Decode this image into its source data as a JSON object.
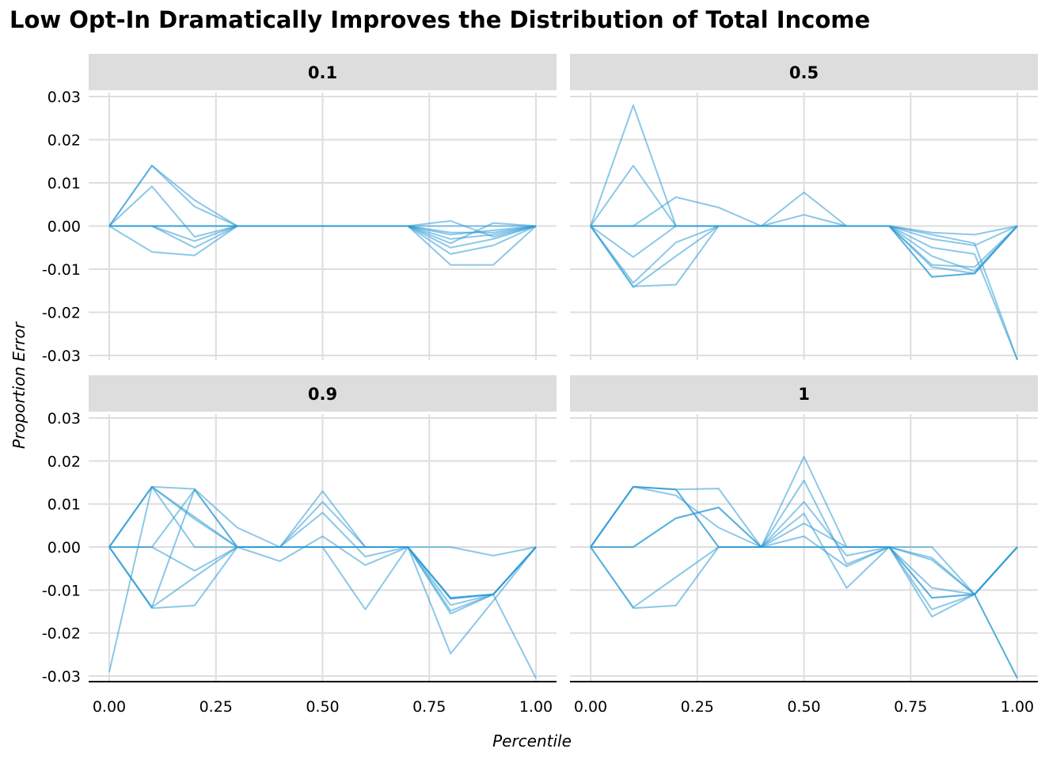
{
  "chart_data": {
    "type": "line",
    "title": "Low Opt-In Dramatically Improves the Distribution of Total Income",
    "xlabel": "Percentile",
    "ylabel": "Proportion Error",
    "xlim": [
      0,
      1
    ],
    "ylim": [
      -0.03,
      0.03
    ],
    "x_ticks": [
      0,
      0.25,
      0.5,
      0.75,
      1
    ],
    "x_tick_labels": [
      "0.00",
      "0.25",
      "0.50",
      "0.75",
      "1.00"
    ],
    "y_ticks": [
      0.03,
      0.02,
      0.01,
      0,
      -0.01,
      -0.02,
      -0.03
    ],
    "y_tick_labels": [
      "0.03",
      "0.02",
      "0.01",
      "0.00",
      "-0.01",
      "-0.02",
      "-0.03"
    ],
    "grid": true,
    "line_color": "#2E9BD5",
    "strip_color": "#DDDDDD",
    "x": [
      0,
      0.1,
      0.2,
      0.3,
      0.4,
      0.5,
      0.6,
      0.7,
      0.8,
      0.9,
      1
    ],
    "panels": [
      {
        "label": "0.1",
        "series": [
          {
            "values": [
              0,
              0.014,
              0.006,
              0,
              0,
              0,
              0,
              0,
              -0.002,
              -0.001,
              0
            ]
          },
          {
            "values": [
              0,
              0.014,
              0.0045,
              0,
              0,
              0,
              0,
              0,
              -0.003,
              -0.002,
              0
            ]
          },
          {
            "values": [
              0,
              0.0092,
              -0.0025,
              0,
              0,
              0,
              0,
              0,
              -0.009,
              -0.009,
              0
            ]
          },
          {
            "values": [
              0,
              -0.006,
              -0.0068,
              0,
              0,
              0,
              0,
              0,
              -0.0065,
              -0.0045,
              0
            ]
          },
          {
            "values": [
              0,
              0,
              -0.0035,
              0,
              0,
              0,
              0,
              0,
              0.0012,
              -0.0025,
              0
            ]
          },
          {
            "values": [
              0,
              0,
              -0.005,
              0,
              0,
              0,
              0,
              0,
              -0.004,
              0.0007,
              0
            ]
          },
          {
            "values": [
              0,
              0,
              0,
              0,
              0,
              0,
              0,
              0,
              -0.0015,
              -0.0015,
              0
            ]
          },
          {
            "values": [
              0,
              0,
              0,
              0,
              0,
              0,
              0,
              0,
              -0.005,
              -0.003,
              0
            ]
          },
          {
            "values": [
              0,
              0,
              0,
              0,
              0,
              0,
              0,
              0,
              0,
              0,
              0
            ]
          }
        ]
      },
      {
        "label": "0.5",
        "series": [
          {
            "values": [
              0,
              0.028,
              0,
              0,
              0,
              0,
              0,
              0,
              -0.0015,
              -0.002,
              0
            ]
          },
          {
            "values": [
              0,
              0.014,
              0,
              0,
              0,
              0,
              0,
              0,
              -0.002,
              -0.004,
              -0.031
            ]
          },
          {
            "values": [
              0,
              0,
              0.0067,
              0.0043,
              0,
              0.0026,
              0,
              0,
              -0.005,
              -0.0065,
              -0.031
            ]
          },
          {
            "values": [
              0,
              -0.0072,
              0,
              0,
              0,
              0.0078,
              0,
              0,
              -0.007,
              -0.0105,
              0
            ]
          },
          {
            "values": [
              0,
              -0.0132,
              -0.0038,
              0,
              0,
              0,
              0,
              0,
              -0.0095,
              -0.011,
              0
            ]
          },
          {
            "values": [
              0,
              -0.0142,
              -0.007,
              0,
              0,
              0,
              0,
              0,
              -0.0118,
              -0.011,
              0
            ]
          },
          {
            "values": [
              0,
              -0.014,
              -0.0136,
              0,
              0,
              0,
              0,
              0,
              -0.009,
              -0.0095,
              0
            ]
          },
          {
            "values": [
              0,
              0,
              0,
              0,
              0,
              0,
              0,
              0,
              -0.003,
              -0.0045,
              0
            ]
          },
          {
            "values": [
              0,
              0,
              0,
              0,
              0,
              0,
              0,
              0,
              -0.0118,
              -0.011,
              0
            ]
          }
        ]
      },
      {
        "label": "0.9",
        "series": [
          {
            "values": [
              -0.029,
              0.014,
              0.0135,
              0.0045,
              0,
              0.013,
              0,
              0,
              -0.0148,
              -0.011,
              0
            ]
          },
          {
            "values": [
              0,
              0.014,
              0.007,
              0,
              0,
              0.0105,
              0,
              0,
              -0.0118,
              -0.011,
              0
            ]
          },
          {
            "values": [
              0,
              0.014,
              0,
              0,
              0,
              0.008,
              -0.0022,
              0,
              -0.0155,
              -0.011,
              0
            ]
          },
          {
            "values": [
              0,
              0,
              0.0133,
              0,
              -0.0033,
              0.0025,
              -0.0042,
              0,
              -0.0248,
              -0.0125,
              0
            ]
          },
          {
            "values": [
              0,
              0,
              -0.0055,
              0,
              0,
              0,
              -0.0145,
              0,
              0,
              -0.002,
              0
            ]
          },
          {
            "values": [
              0,
              -0.014,
              0.0134,
              0,
              0,
              0,
              0,
              0,
              -0.0118,
              -0.011,
              -0.0305
            ]
          },
          {
            "values": [
              0,
              -0.0142,
              -0.0136,
              0,
              0,
              0,
              0,
              0,
              -0.012,
              -0.011,
              0
            ]
          },
          {
            "values": [
              0,
              -0.014,
              -0.007,
              0,
              0,
              0,
              0,
              0,
              -0.0135,
              -0.011,
              0
            ]
          },
          {
            "values": [
              0,
              0.014,
              0.0065,
              0,
              0,
              0,
              0,
              0,
              -0.012,
              -0.011,
              0
            ]
          }
        ]
      },
      {
        "label": "1",
        "series": [
          {
            "values": [
              0,
              0.014,
              0.0134,
              0,
              0,
              0.021,
              0,
              0,
              -0.0162,
              -0.011,
              -0.0305
            ]
          },
          {
            "values": [
              0,
              0.014,
              0.012,
              0.0045,
              0,
              0.0155,
              -0.004,
              0,
              -0.0145,
              -0.011,
              0
            ]
          },
          {
            "values": [
              0,
              0.014,
              0.0134,
              0.0136,
              0,
              0.0105,
              -0.002,
              0,
              -0.0095,
              -0.011,
              0
            ]
          },
          {
            "values": [
              0,
              0,
              0.0067,
              0.0092,
              0,
              0.0078,
              -0.0095,
              0,
              -0.0118,
              -0.011,
              0
            ]
          },
          {
            "values": [
              0,
              -0.0142,
              -0.0136,
              0,
              0,
              0.0055,
              0,
              0,
              -0.003,
              -0.011,
              0
            ]
          },
          {
            "values": [
              0,
              -0.014,
              -0.007,
              0,
              0,
              0.0025,
              -0.0045,
              0,
              0,
              -0.011,
              0
            ]
          },
          {
            "values": [
              0,
              0.014,
              0.0134,
              0,
              0,
              0,
              0,
              0,
              -0.0118,
              -0.011,
              -0.0305
            ]
          },
          {
            "values": [
              0,
              0,
              0.0067,
              0.0092,
              0,
              0,
              0,
              0,
              -0.0025,
              -0.011,
              0
            ]
          }
        ]
      }
    ]
  }
}
